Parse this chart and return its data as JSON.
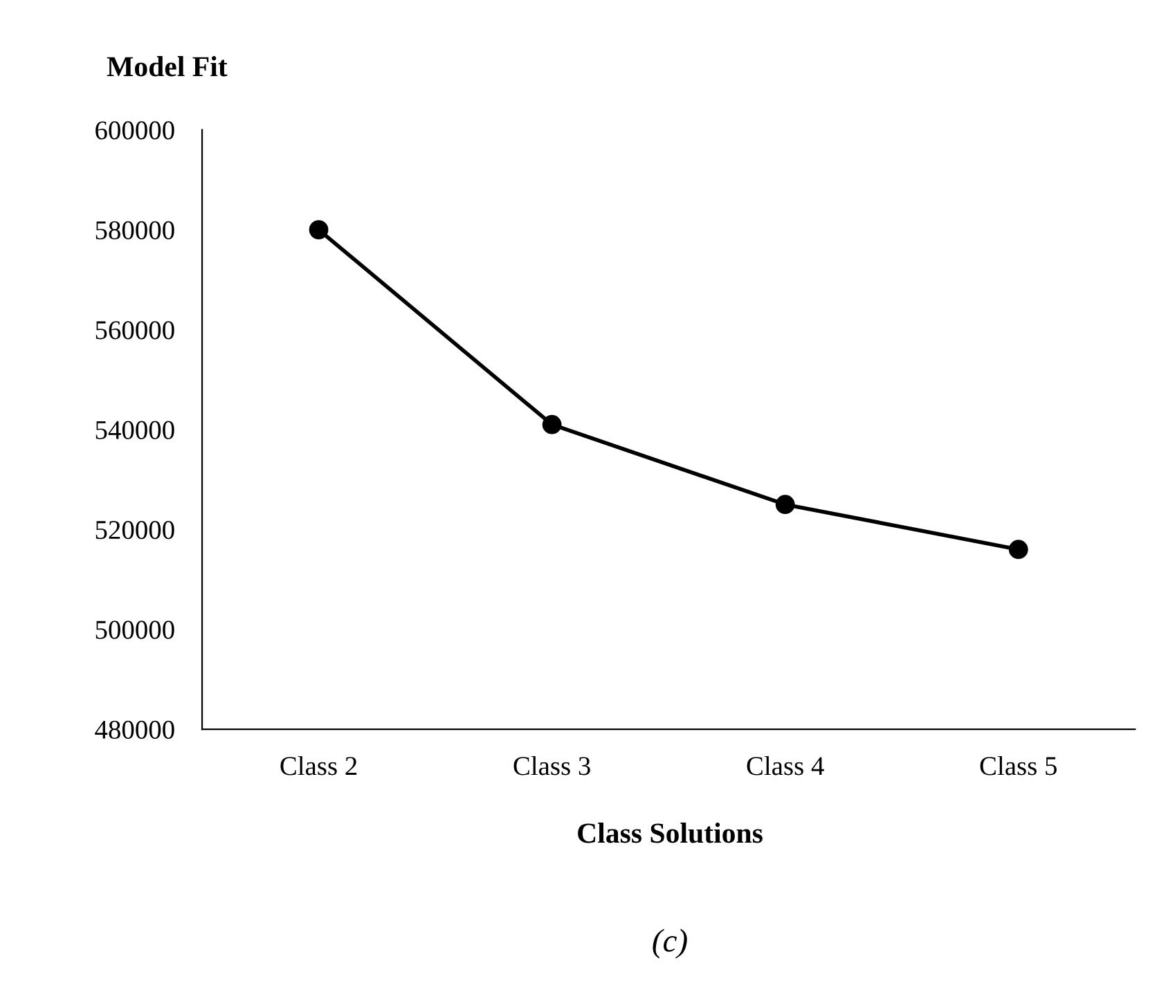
{
  "chart_data": {
    "type": "line",
    "title": "Model Fit",
    "xlabel": "Class Solutions",
    "categories": [
      "Class 2",
      "Class 3",
      "Class 4",
      "Class 5"
    ],
    "series": [
      {
        "color": "#000000",
        "values": [
          580000,
          541000,
          525000,
          516000
        ]
      }
    ],
    "ylim": [
      480000,
      600000
    ],
    "yticks": [
      480000,
      500000,
      520000,
      540000,
      560000,
      580000,
      600000
    ],
    "marker": "circle",
    "line_style": "solid",
    "grid": false,
    "legend": false,
    "annotations": [
      "(c)"
    ]
  }
}
